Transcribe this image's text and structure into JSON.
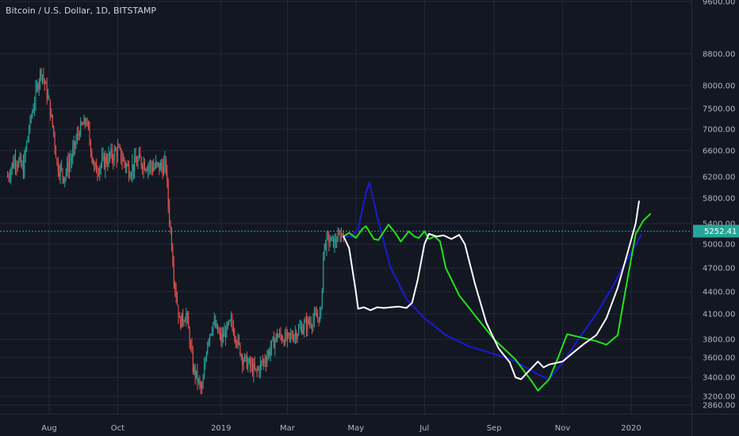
{
  "header": {
    "title": "Bitcoin / U.S. Dollar, 1D, BITSTAMP"
  },
  "price_badge": {
    "value": "5252.41"
  },
  "colors": {
    "background": "#131722",
    "grid": "#23293a",
    "axis_text": "#b2b5be",
    "candle_up": "#26a69a",
    "candle_down": "#ef5350",
    "line_blue": "#1a1ad6",
    "line_green": "#22e11c",
    "line_white": "#ffffff",
    "current_price": "#26a69a"
  },
  "chart_data": {
    "type": "line",
    "title": "Bitcoin / U.S. Dollar, 1D, BITSTAMP",
    "xlabel": "",
    "ylabel": "",
    "ylim": [
      2800,
      9600
    ],
    "y_ticks": [
      2860,
      3200,
      3400,
      3600,
      3800,
      4100,
      4400,
      4700,
      5000,
      5400,
      5800,
      6200,
      6600,
      7000,
      7500,
      8000,
      8800,
      9600
    ],
    "y_tick_labels": [
      "2860.00",
      "3200.00",
      "3400.00",
      "3600.00",
      "3800.00",
      "4100.00",
      "4400.00",
      "4700.00",
      "5000.00",
      "5400.00",
      "5800.00",
      "6200.00",
      "6600.00",
      "7000.00",
      "7500.00",
      "8000.00",
      "8800.00",
      "9600.00"
    ],
    "x_ticks": [
      {
        "label": "Aug",
        "x": "2018-08-01"
      },
      {
        "label": "Oct",
        "x": "2018-10-01"
      },
      {
        "label": "2019",
        "x": "2019-01-01"
      },
      {
        "label": "Mar",
        "x": "2019-03-01"
      },
      {
        "label": "May",
        "x": "2019-05-01"
      },
      {
        "label": "Jul",
        "x": "2019-07-01"
      },
      {
        "label": "Sep",
        "x": "2019-09-01"
      },
      {
        "label": "Nov",
        "x": "2019-11-01"
      },
      {
        "label": "2020",
        "x": "2020-01-01"
      }
    ],
    "current_price": 5252.41,
    "candle_anchors": [
      [
        "2018-06-25",
        6200
      ],
      [
        "2018-07-02",
        6500
      ],
      [
        "2018-07-09",
        6300
      ],
      [
        "2018-07-16",
        7300
      ],
      [
        "2018-07-23",
        8200
      ],
      [
        "2018-07-25",
        8400
      ],
      [
        "2018-08-01",
        7600
      ],
      [
        "2018-08-08",
        6400
      ],
      [
        "2018-08-14",
        6200
      ],
      [
        "2018-08-21",
        6500
      ],
      [
        "2018-08-28",
        7000
      ],
      [
        "2018-09-03",
        7200
      ],
      [
        "2018-09-10",
        6300
      ],
      [
        "2018-09-20",
        6450
      ],
      [
        "2018-10-01",
        6600
      ],
      [
        "2018-10-11",
        6300
      ],
      [
        "2018-10-20",
        6450
      ],
      [
        "2018-11-01",
        6350
      ],
      [
        "2018-11-13",
        6350
      ],
      [
        "2018-11-15",
        5700
      ],
      [
        "2018-11-20",
        4600
      ],
      [
        "2018-11-25",
        4000
      ],
      [
        "2018-12-01",
        4100
      ],
      [
        "2018-12-07",
        3500
      ],
      [
        "2018-12-15",
        3250
      ],
      [
        "2018-12-20",
        3800
      ],
      [
        "2018-12-25",
        4000
      ],
      [
        "2019-01-01",
        3800
      ],
      [
        "2019-01-10",
        4000
      ],
      [
        "2019-01-20",
        3600
      ],
      [
        "2019-02-01",
        3450
      ],
      [
        "2019-02-10",
        3600
      ],
      [
        "2019-02-20",
        3850
      ],
      [
        "2019-03-01",
        3800
      ],
      [
        "2019-03-15",
        3950
      ],
      [
        "2019-03-31",
        4100
      ],
      [
        "2019-04-02",
        4900
      ],
      [
        "2019-04-05",
        5100
      ],
      [
        "2019-04-12",
        5050
      ],
      [
        "2019-04-20",
        5250
      ]
    ],
    "series": [
      {
        "color": "#1a1ad6",
        "points": [
          [
            "2019-04-20",
            5150
          ],
          [
            "2019-04-27",
            5150
          ],
          [
            "2019-05-03",
            5300
          ],
          [
            "2019-05-10",
            5900
          ],
          [
            "2019-05-13",
            6100
          ],
          [
            "2019-05-20",
            5500
          ],
          [
            "2019-06-01",
            4700
          ],
          [
            "2019-06-15",
            4300
          ],
          [
            "2019-07-01",
            4050
          ],
          [
            "2019-07-20",
            3850
          ],
          [
            "2019-08-10",
            3720
          ],
          [
            "2019-09-01",
            3640
          ],
          [
            "2019-09-20",
            3560
          ],
          [
            "2019-10-10",
            3430
          ],
          [
            "2019-10-20",
            3380
          ],
          [
            "2019-11-01",
            3550
          ],
          [
            "2019-11-15",
            3800
          ],
          [
            "2019-12-01",
            4100
          ],
          [
            "2019-12-15",
            4450
          ],
          [
            "2019-12-28",
            4800
          ],
          [
            "2020-01-10",
            5180
          ]
        ]
      },
      {
        "color": "#22e11c",
        "points": [
          [
            "2019-04-20",
            5150
          ],
          [
            "2019-04-25",
            5220
          ],
          [
            "2019-05-01",
            5120
          ],
          [
            "2019-05-07",
            5300
          ],
          [
            "2019-05-10",
            5350
          ],
          [
            "2019-05-17",
            5100
          ],
          [
            "2019-05-21",
            5080
          ],
          [
            "2019-05-30",
            5380
          ],
          [
            "2019-06-05",
            5220
          ],
          [
            "2019-06-10",
            5050
          ],
          [
            "2019-06-17",
            5250
          ],
          [
            "2019-06-22",
            5150
          ],
          [
            "2019-06-26",
            5120
          ],
          [
            "2019-07-01",
            5250
          ],
          [
            "2019-07-05",
            5100
          ],
          [
            "2019-07-10",
            5150
          ],
          [
            "2019-07-15",
            5050
          ],
          [
            "2019-07-20",
            4700
          ],
          [
            "2019-08-01",
            4350
          ],
          [
            "2019-08-20",
            4000
          ],
          [
            "2019-09-01",
            3800
          ],
          [
            "2019-09-20",
            3580
          ],
          [
            "2019-10-05",
            3350
          ],
          [
            "2019-10-10",
            3260
          ],
          [
            "2019-10-20",
            3380
          ],
          [
            "2019-10-28",
            3600
          ],
          [
            "2019-11-05",
            3860
          ],
          [
            "2019-11-15",
            3830
          ],
          [
            "2019-12-01",
            3780
          ],
          [
            "2019-12-10",
            3740
          ],
          [
            "2019-12-20",
            3850
          ],
          [
            "2019-12-28",
            4500
          ],
          [
            "2020-01-05",
            5200
          ],
          [
            "2020-01-12",
            5450
          ],
          [
            "2020-01-18",
            5550
          ]
        ]
      },
      {
        "color": "#ffffff",
        "points": [
          [
            "2019-04-20",
            5150
          ],
          [
            "2019-04-25",
            4950
          ],
          [
            "2019-05-01",
            4400
          ],
          [
            "2019-05-03",
            4170
          ],
          [
            "2019-05-08",
            4190
          ],
          [
            "2019-05-14",
            4150
          ],
          [
            "2019-05-20",
            4190
          ],
          [
            "2019-05-26",
            4180
          ],
          [
            "2019-06-01",
            4190
          ],
          [
            "2019-06-08",
            4200
          ],
          [
            "2019-06-15",
            4180
          ],
          [
            "2019-06-20",
            4250
          ],
          [
            "2019-06-25",
            4550
          ],
          [
            "2019-07-01",
            5000
          ],
          [
            "2019-07-05",
            5200
          ],
          [
            "2019-07-12",
            5150
          ],
          [
            "2019-07-18",
            5170
          ],
          [
            "2019-07-25",
            5100
          ],
          [
            "2019-08-01",
            5180
          ],
          [
            "2019-08-06",
            5000
          ],
          [
            "2019-08-15",
            4500
          ],
          [
            "2019-08-25",
            4000
          ],
          [
            "2019-09-05",
            3700
          ],
          [
            "2019-09-15",
            3550
          ],
          [
            "2019-09-20",
            3400
          ],
          [
            "2019-09-25",
            3380
          ],
          [
            "2019-10-05",
            3500
          ],
          [
            "2019-10-10",
            3560
          ],
          [
            "2019-10-15",
            3500
          ],
          [
            "2019-10-20",
            3530
          ],
          [
            "2019-11-01",
            3560
          ],
          [
            "2019-11-10",
            3650
          ],
          [
            "2019-11-20",
            3750
          ],
          [
            "2019-12-01",
            3850
          ],
          [
            "2019-12-10",
            4050
          ],
          [
            "2019-12-20",
            4450
          ],
          [
            "2019-12-28",
            4850
          ],
          [
            "2020-01-05",
            5400
          ],
          [
            "2020-01-08",
            5750
          ]
        ]
      }
    ]
  }
}
